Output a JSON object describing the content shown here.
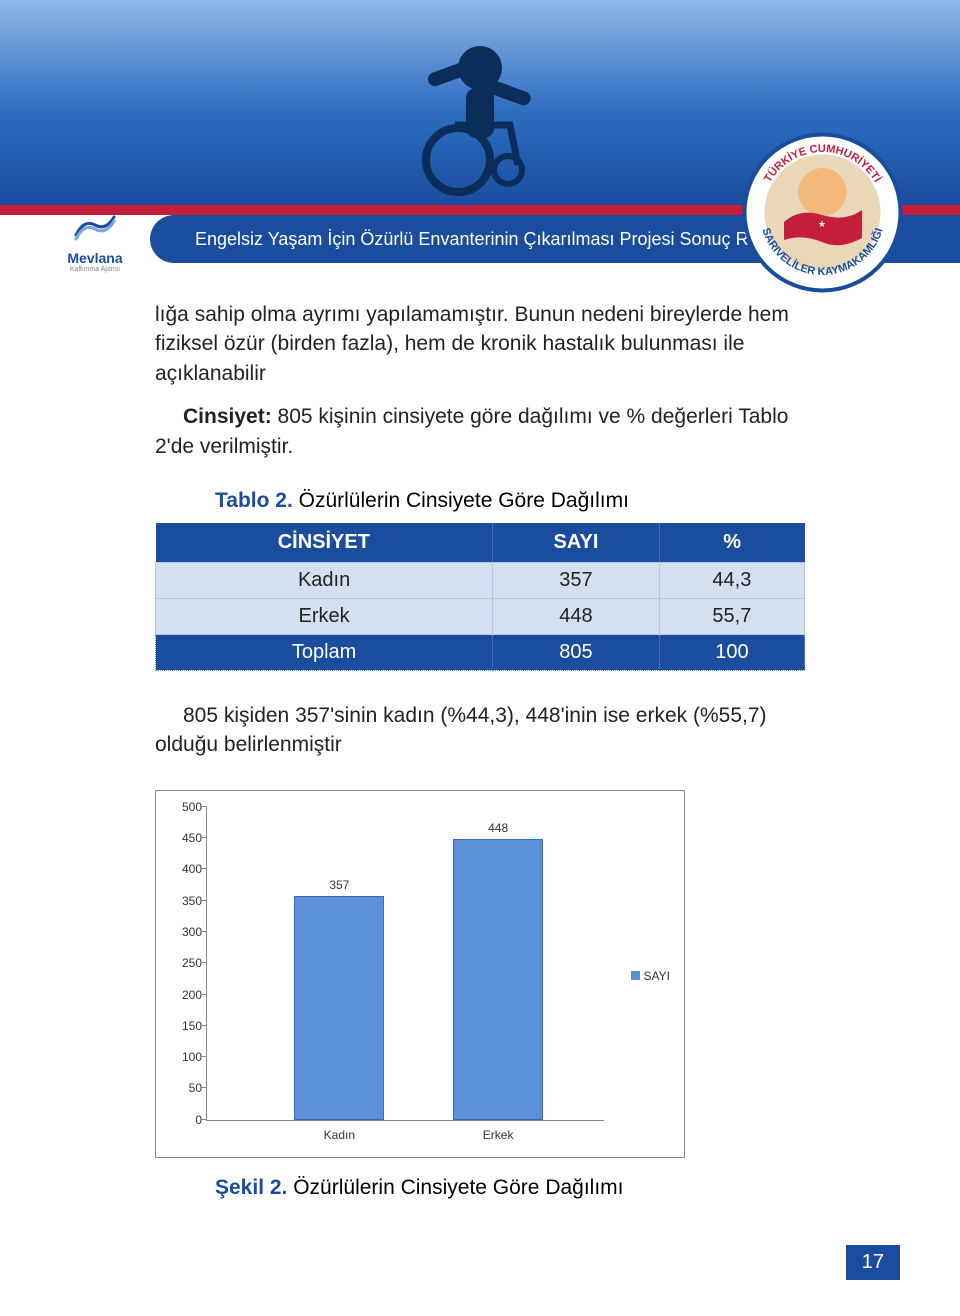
{
  "header": {
    "banner_title": "Engelsiz Yaşam İçin Özürlü Envanterinin Çıkarılması Projesi Sonuç Raporu",
    "logo_left_name": "Mevlana",
    "logo_left_sub": "Kalkınma Ajansı",
    "emblem_top": "TÜRKİYE CUMHURİYETİ",
    "emblem_bottom": "SARIVELİLER KAYMAKAMLIĞI"
  },
  "body": {
    "para1": "lığa sahip olma ayrımı yapılamamıştır. Bunun nedeni bireylerde hem fiziksel özür (birden fazla), hem de kronik hastalık bulunması ile açıklanabilir",
    "para2_label": "Cinsiyet:",
    "para2_text": " 805 kişinin cinsiyete göre dağılımı ve % değerleri Tablo 2'de verilmiştir.",
    "note": "805 kişiden 357'sinin kadın (%44,3), 448'inin ise erkek (%55,7) olduğu belirlenmiştir"
  },
  "table": {
    "caption_label": "Tablo 2.",
    "caption_text": " Özürlülerin Cinsiyete Göre Dağılımı",
    "columns": [
      "CİNSİYET",
      "SAYI",
      "%"
    ],
    "rows": [
      [
        "Kadın",
        "357",
        "44,3"
      ],
      [
        "Erkek",
        "448",
        "55,7"
      ]
    ],
    "total_row": [
      "Toplam",
      "805",
      "100"
    ],
    "header_bg": "#1a4d9e",
    "header_fg": "#ffffff",
    "alt_bg": "#d4dff0",
    "border_color": "#b8c7e0"
  },
  "chart": {
    "type": "bar",
    "categories": [
      "Kadın",
      "Erkek"
    ],
    "values": [
      357,
      448
    ],
    "value_labels": [
      "357",
      "448"
    ],
    "bar_color": "#5b8fd6",
    "bar_border": "#3a6db0",
    "ylim": [
      0,
      500
    ],
    "ytick_step": 50,
    "yticks": [
      0,
      50,
      100,
      150,
      200,
      250,
      300,
      350,
      400,
      450,
      500
    ],
    "legend_label": "SAYI",
    "axis_color": "#888888",
    "label_fontsize": 12,
    "background_color": "#ffffff",
    "bar_positions_pct": [
      22,
      62
    ]
  },
  "figure": {
    "caption_label": "Şekil 2.",
    "caption_text": " Özürlülerin Cinsiyete Göre Dağılımı"
  },
  "page_number": "17"
}
